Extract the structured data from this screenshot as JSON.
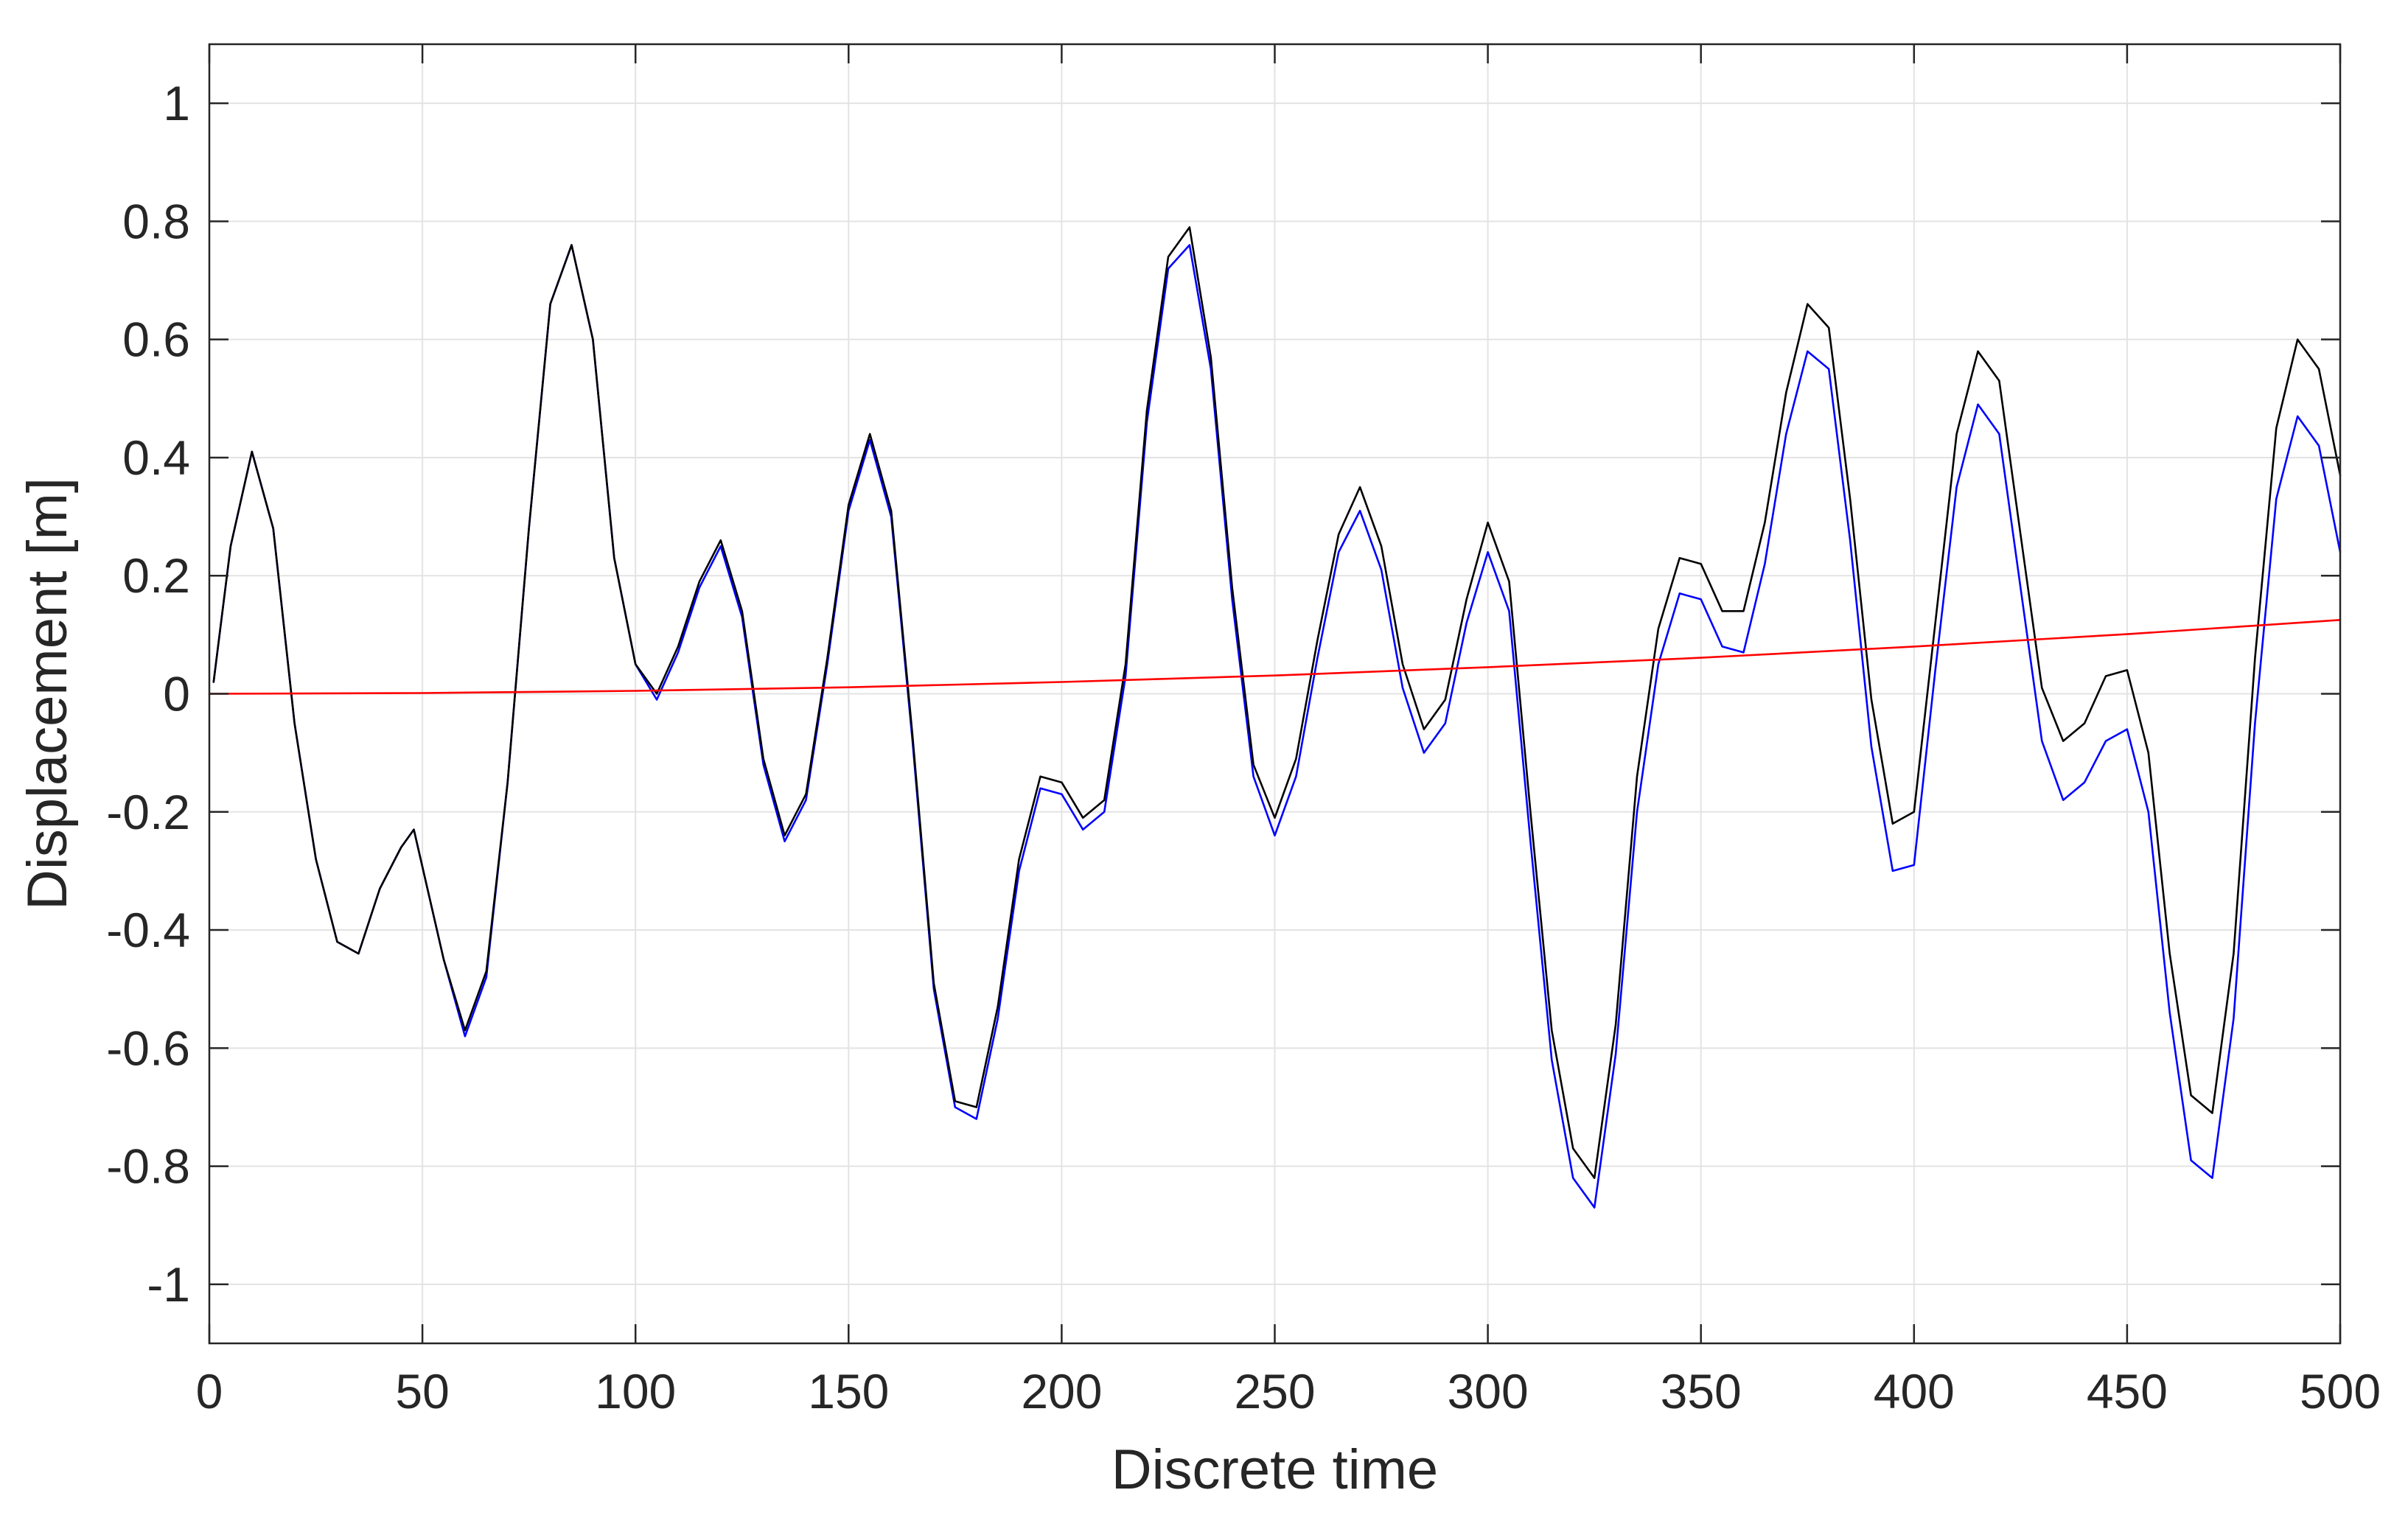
{
  "chart_data": {
    "type": "line",
    "title": "",
    "xlabel": "Discrete time",
    "ylabel": "Displacement [m]",
    "xlim": [
      0,
      500
    ],
    "ylim": [
      -1.1,
      1.1
    ],
    "grid": true,
    "legend": "none",
    "xticks": [
      0,
      50,
      100,
      150,
      200,
      250,
      300,
      350,
      400,
      450,
      500
    ],
    "yticks": [
      -1,
      -0.8,
      -0.6,
      -0.4,
      -0.2,
      0,
      0.2,
      0.4,
      0.6,
      0.8,
      1
    ],
    "xtick_labels": [
      "0",
      "50",
      "100",
      "150",
      "200",
      "250",
      "300",
      "350",
      "400",
      "450",
      "500"
    ],
    "ytick_labels": [
      "-1",
      "-0.8",
      "-0.6",
      "-0.4",
      "-0.2",
      "0",
      "0.2",
      "0.4",
      "0.6",
      "0.8",
      "1"
    ],
    "series": [
      {
        "color": "#0000ff",
        "x": [
          1,
          5,
          10,
          15,
          20,
          25,
          30,
          35,
          40,
          45,
          48,
          55,
          60,
          65,
          70,
          75,
          80,
          85,
          90,
          95,
          100,
          105,
          110,
          115,
          120,
          125,
          130,
          135,
          140,
          145,
          150,
          155,
          160,
          165,
          170,
          175,
          180,
          185,
          190,
          195,
          200,
          205,
          210,
          215,
          220,
          225,
          230,
          235,
          240,
          245,
          250,
          255,
          260,
          265,
          270,
          275,
          280,
          285,
          290,
          295,
          300,
          305,
          310,
          315,
          320,
          325,
          330,
          335,
          340,
          345,
          350,
          355,
          360,
          365,
          370,
          375,
          380,
          385,
          390,
          395,
          400,
          405,
          410,
          415,
          420,
          425,
          430,
          435,
          440,
          445,
          450,
          455,
          460,
          465,
          470,
          475,
          480,
          485,
          490,
          495,
          500
        ],
        "values": [
          0.02,
          0.25,
          0.41,
          0.28,
          -0.05,
          -0.28,
          -0.42,
          -0.44,
          -0.33,
          -0.26,
          -0.23,
          -0.45,
          -0.58,
          -0.48,
          -0.15,
          0.28,
          0.66,
          0.76,
          0.6,
          0.23,
          0.05,
          -0.01,
          0.07,
          0.18,
          0.25,
          0.13,
          -0.12,
          -0.25,
          -0.18,
          0.05,
          0.31,
          0.43,
          0.3,
          -0.08,
          -0.5,
          -0.7,
          -0.72,
          -0.55,
          -0.3,
          -0.16,
          -0.17,
          -0.23,
          -0.2,
          0.03,
          0.46,
          0.72,
          0.76,
          0.55,
          0.16,
          -0.14,
          -0.24,
          -0.14,
          0.06,
          0.24,
          0.31,
          0.21,
          0.01,
          -0.1,
          -0.05,
          0.12,
          0.24,
          0.14,
          -0.25,
          -0.62,
          -0.82,
          -0.87,
          -0.61,
          -0.2,
          0.05,
          0.17,
          0.16,
          0.08,
          0.07,
          0.22,
          0.44,
          0.58,
          0.55,
          0.26,
          -0.09,
          -0.3,
          -0.29,
          0.04,
          0.35,
          0.49,
          0.44,
          0.18,
          -0.08,
          -0.18,
          -0.15,
          -0.08,
          -0.06,
          -0.2,
          -0.54,
          -0.79,
          -0.82,
          -0.55,
          -0.05,
          0.33,
          0.47,
          0.42,
          0.24
        ]
      },
      {
        "color": "#000000",
        "x": [
          1,
          5,
          10,
          15,
          20,
          25,
          30,
          35,
          40,
          45,
          48,
          55,
          60,
          65,
          70,
          75,
          80,
          85,
          90,
          95,
          100,
          105,
          110,
          115,
          120,
          125,
          130,
          135,
          140,
          145,
          150,
          155,
          160,
          165,
          170,
          175,
          180,
          185,
          190,
          195,
          200,
          205,
          210,
          215,
          220,
          225,
          230,
          235,
          240,
          245,
          250,
          255,
          260,
          265,
          270,
          275,
          280,
          285,
          290,
          295,
          300,
          305,
          310,
          315,
          320,
          325,
          330,
          335,
          340,
          345,
          350,
          355,
          360,
          365,
          370,
          375,
          380,
          385,
          390,
          395,
          400,
          405,
          410,
          415,
          420,
          425,
          430,
          435,
          440,
          445,
          450,
          455,
          460,
          465,
          470,
          475,
          480,
          485,
          490,
          495,
          500
        ],
        "values": [
          0.02,
          0.25,
          0.41,
          0.28,
          -0.05,
          -0.28,
          -0.42,
          -0.44,
          -0.33,
          -0.26,
          -0.23,
          -0.45,
          -0.57,
          -0.47,
          -0.15,
          0.28,
          0.66,
          0.76,
          0.6,
          0.23,
          0.05,
          0.0,
          0.08,
          0.19,
          0.26,
          0.14,
          -0.11,
          -0.24,
          -0.17,
          0.06,
          0.32,
          0.44,
          0.31,
          -0.07,
          -0.49,
          -0.69,
          -0.7,
          -0.53,
          -0.28,
          -0.14,
          -0.15,
          -0.21,
          -0.18,
          0.05,
          0.48,
          0.74,
          0.79,
          0.57,
          0.18,
          -0.12,
          -0.21,
          -0.11,
          0.09,
          0.27,
          0.35,
          0.25,
          0.05,
          -0.06,
          -0.01,
          0.16,
          0.29,
          0.19,
          -0.2,
          -0.57,
          -0.77,
          -0.82,
          -0.56,
          -0.14,
          0.11,
          0.23,
          0.22,
          0.14,
          0.14,
          0.29,
          0.51,
          0.66,
          0.62,
          0.33,
          -0.01,
          -0.22,
          -0.2,
          0.12,
          0.44,
          0.58,
          0.53,
          0.27,
          0.01,
          -0.08,
          -0.05,
          0.03,
          0.04,
          -0.1,
          -0.44,
          -0.68,
          -0.71,
          -0.44,
          0.06,
          0.45,
          0.6,
          0.55,
          0.37
        ]
      },
      {
        "color": "#ff0000",
        "x": [
          0,
          50,
          100,
          150,
          200,
          250,
          300,
          350,
          400,
          450,
          500
        ],
        "values": [
          0.0,
          0.0012,
          0.005,
          0.011,
          0.02,
          0.031,
          0.045,
          0.061,
          0.08,
          0.101,
          0.125
        ]
      }
    ]
  }
}
